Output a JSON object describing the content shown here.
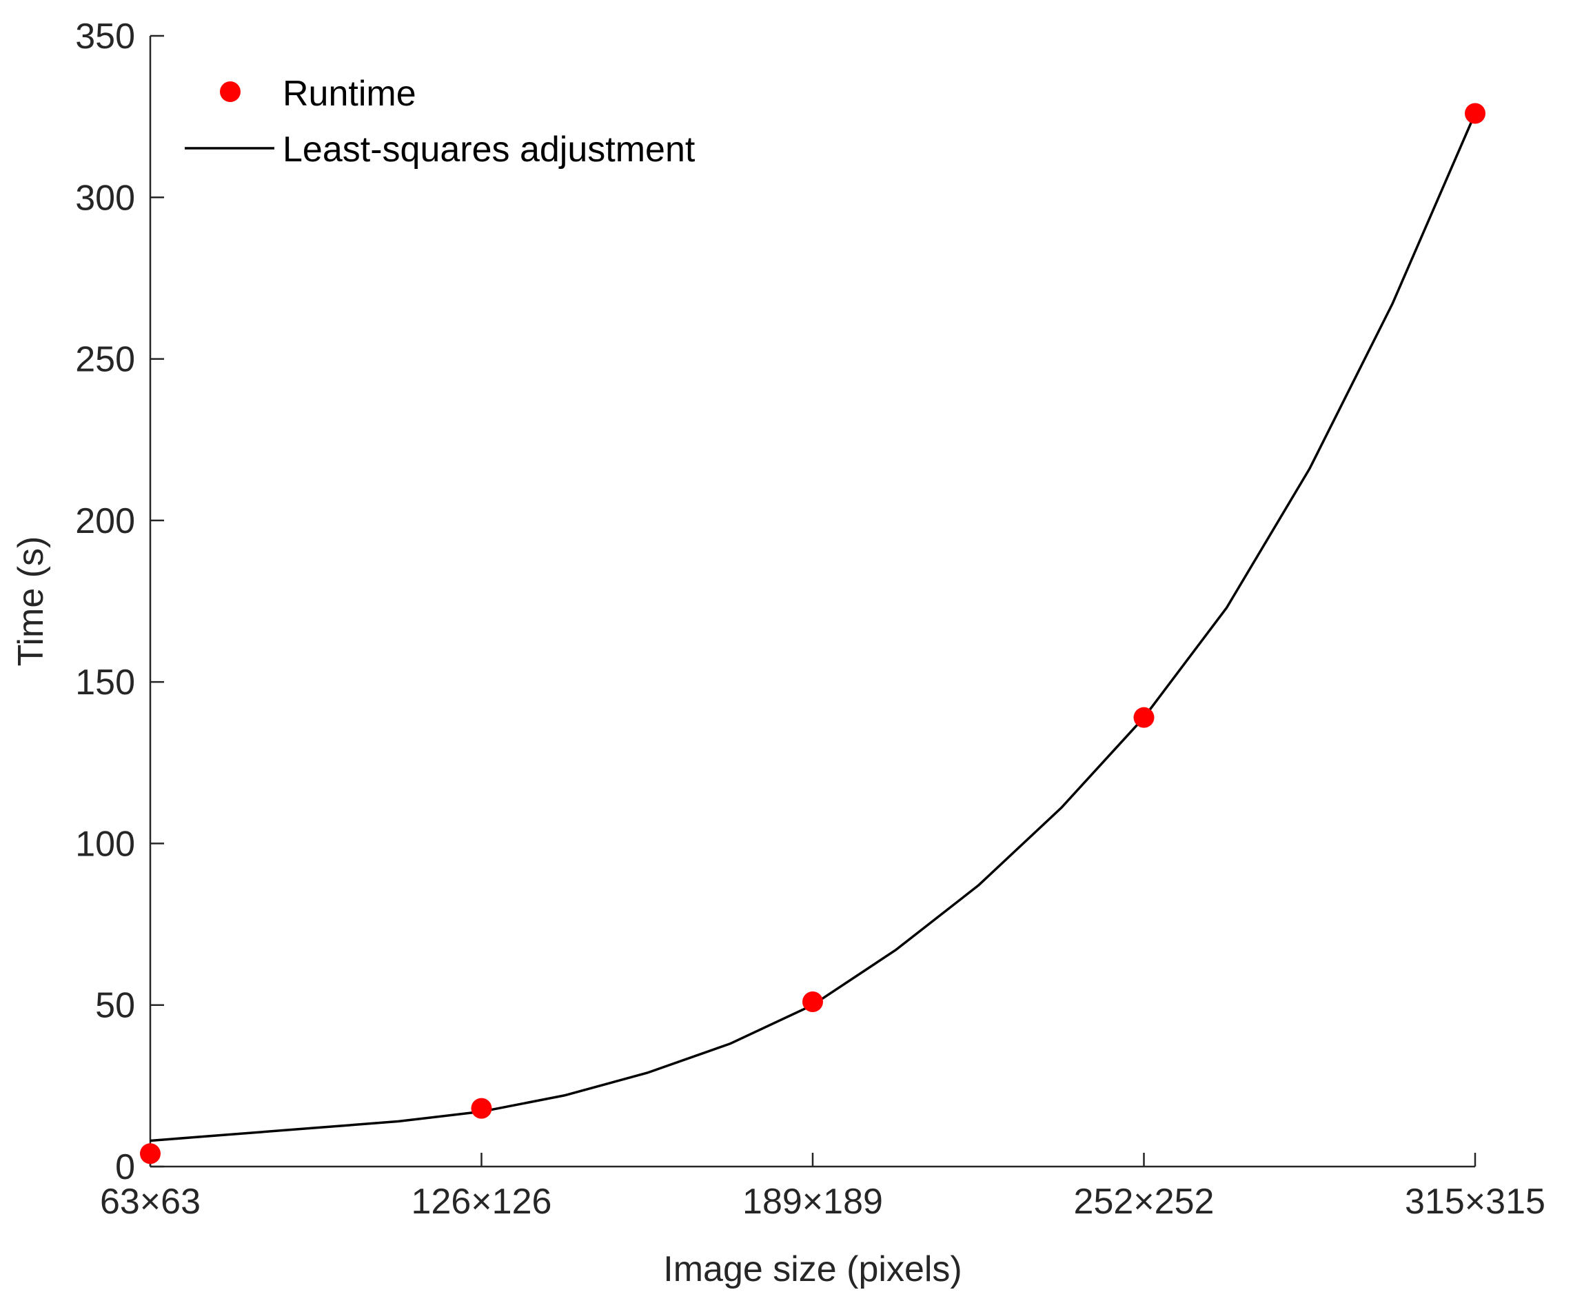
{
  "chart_data": {
    "type": "scatter",
    "xlabel": "Image size (pixels)",
    "ylabel": "Time (s)",
    "x_categories": [
      "63×63",
      "126×126",
      "189×189",
      "252×252",
      "315×315"
    ],
    "xlim": [
      0,
      4
    ],
    "ylim": [
      0,
      350
    ],
    "y_ticks": [
      0,
      50,
      100,
      150,
      200,
      250,
      300,
      350
    ],
    "grid": false,
    "legend_position": "top-left",
    "series": [
      {
        "name": "Runtime",
        "kind": "markers",
        "color": "#ff0000",
        "x": [
          0,
          1,
          2,
          3,
          4
        ],
        "values": [
          4,
          18,
          51,
          139,
          326
        ]
      },
      {
        "name": "Least-squares adjustment",
        "kind": "line",
        "color": "#000000",
        "x": [
          0,
          0.25,
          0.5,
          0.75,
          1,
          1.25,
          1.5,
          1.75,
          2,
          2.25,
          2.5,
          2.75,
          3,
          3.25,
          3.5,
          3.75,
          4
        ],
        "values": [
          8,
          10,
          12,
          14,
          17,
          22,
          29,
          38,
          50,
          67,
          87,
          111,
          139,
          173,
          216,
          267,
          326
        ]
      }
    ]
  }
}
